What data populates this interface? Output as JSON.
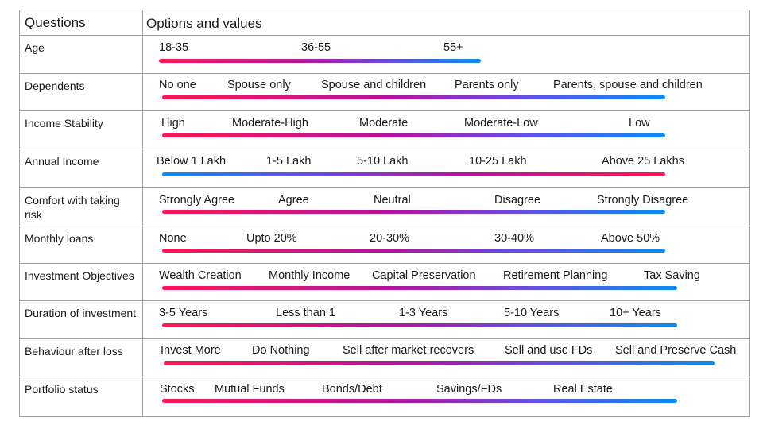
{
  "header": {
    "questions": "Questions",
    "options": "Options and values"
  },
  "rows": [
    {
      "question": "Age",
      "options": [
        "18-35",
        "36-55",
        "55+"
      ],
      "direction": "warm-to-cool"
    },
    {
      "question": "Dependents",
      "options": [
        "No one",
        "Spouse only",
        "Spouse and children",
        "Parents only",
        "Parents, spouse and children"
      ],
      "direction": "warm-to-cool"
    },
    {
      "question": "Income Stability",
      "options": [
        "High",
        "Moderate-High",
        "Moderate",
        "Moderate-Low",
        "Low"
      ],
      "direction": "warm-to-cool"
    },
    {
      "question": "Annual Income",
      "options": [
        "Below 1 Lakh",
        "1-5 Lakh",
        "5-10 Lakh",
        "10-25 Lakh",
        "Above 25 Lakhs"
      ],
      "direction": "cool-to-warm"
    },
    {
      "question": "Comfort with taking risk",
      "options": [
        "Strongly Agree",
        "Agree",
        "Neutral",
        "Disagree",
        "Strongly Disagree"
      ],
      "direction": "warm-to-cool"
    },
    {
      "question": "Monthly loans",
      "options": [
        "None",
        "Upto 20%",
        "20-30%",
        "30-40%",
        "Above 50%"
      ],
      "direction": "warm-to-cool"
    },
    {
      "question": "Investment Objectives",
      "options": [
        "Wealth Creation",
        "Monthly Income",
        "Capital Preservation",
        "Retirement Planning",
        "Tax Saving"
      ],
      "direction": "warm-to-cool"
    },
    {
      "question": "Duration of investment",
      "options": [
        "3-5 Years",
        "Less than 1",
        "1-3 Years",
        "5-10 Years",
        "10+ Years"
      ],
      "direction": "warm-to-cool"
    },
    {
      "question": "Behaviour after loss",
      "options": [
        "Invest More",
        "Do Nothing",
        "Sell after market recovers",
        "Sell and use FDs",
        "Sell and Preserve Cash"
      ],
      "direction": "warm-to-cool"
    },
    {
      "question": "Portfolio status",
      "options": [
        "Stocks",
        "Mutual Funds",
        "Bonds/Debt",
        "Savings/FDs",
        "Real Estate"
      ],
      "direction": "warm-to-cool"
    }
  ],
  "colors": {
    "warm": "#ff1654",
    "mid": "#b3149c",
    "cool": "#0a8cf2",
    "border": "#9e9e9e"
  }
}
